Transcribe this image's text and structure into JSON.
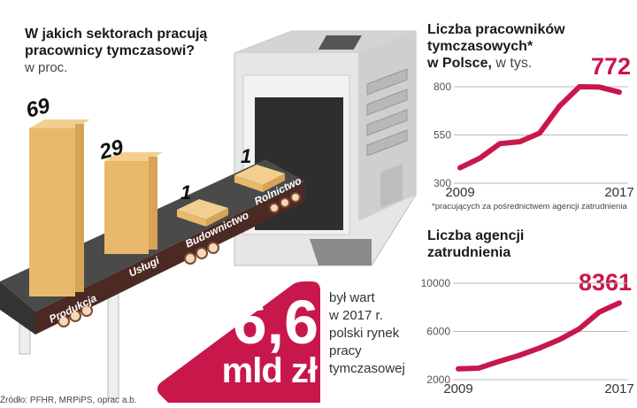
{
  "sectors": {
    "title_line1": "W jakich sektorach pracują",
    "title_line2": "pracownicy tymczasowi?",
    "unit": "w proc.",
    "items": [
      {
        "label": "Produkcja",
        "value": "69"
      },
      {
        "label": "Usługi",
        "value": "29"
      },
      {
        "label": "Budownictwo",
        "value": "1"
      },
      {
        "label": "Rolnictwo",
        "value": "1"
      }
    ]
  },
  "market": {
    "value": "6,6",
    "unit": "mld zł",
    "desc": [
      "był wart",
      "w 2017 r.",
      "polski rynek",
      "pracy",
      "tymczasowej"
    ]
  },
  "source": "Źródło: PFHR, MRPiPS, oprac a.b.",
  "colors": {
    "accent": "#c8174b",
    "box": "#e8b96a",
    "belt": "#4a4a4a",
    "machine": "#d9d9d9"
  },
  "chart_data": [
    {
      "type": "line",
      "title_line1": "Liczba pracowników",
      "title_line2": "tymczasowych*",
      "title_line3": "w Polsce,",
      "unit": "w tys.",
      "footnote": "*pracujących za pośrednictwem agencji zatrudnienia",
      "highlight": "772",
      "x": [
        2009,
        2010,
        2011,
        2012,
        2013,
        2014,
        2015,
        2016,
        2017
      ],
      "y": [
        380,
        430,
        505,
        515,
        560,
        700,
        800,
        798,
        772
      ],
      "x_tick_labels": [
        "2009",
        "2017"
      ],
      "y_ticks": [
        "300",
        "550",
        "800"
      ],
      "ylim": [
        300,
        800
      ],
      "grid": true,
      "color": "#c8174b"
    },
    {
      "type": "line",
      "title_line1": "Liczba agencji",
      "title_line2": "zatrudnienia",
      "highlight": "8361",
      "x": [
        2009,
        2010,
        2011,
        2012,
        2013,
        2014,
        2015,
        2016,
        2017
      ],
      "y": [
        2900,
        2950,
        3500,
        4000,
        4600,
        5300,
        6200,
        7600,
        8361
      ],
      "x_tick_labels": [
        "2009",
        "2017"
      ],
      "y_ticks": [
        "2000",
        "6000",
        "10000"
      ],
      "ylim": [
        2000,
        10000
      ],
      "grid": true,
      "color": "#c8174b"
    }
  ]
}
